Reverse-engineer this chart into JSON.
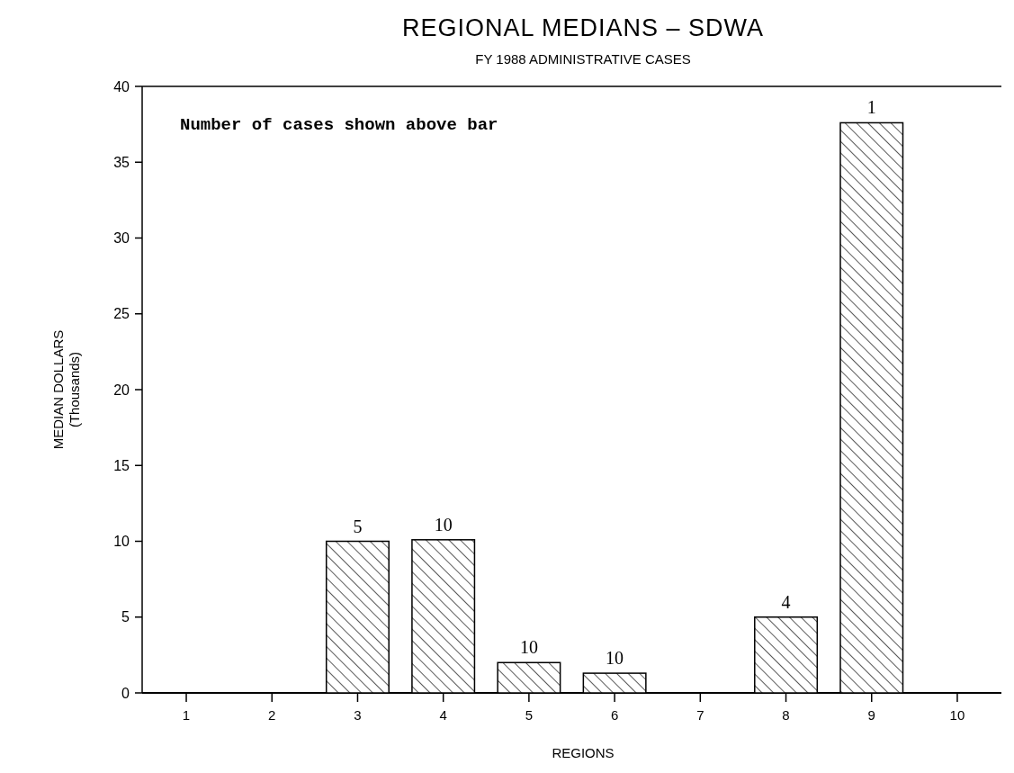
{
  "chart_data": {
    "type": "bar",
    "title": "REGIONAL MEDIANS – SDWA",
    "subtitle": "FY 1988 ADMINISTRATIVE CASES",
    "xlabel": "REGIONS",
    "ylabel": "MEDIAN DOLLARS\n(Thousands)",
    "categories": [
      "1",
      "2",
      "3",
      "4",
      "5",
      "6",
      "7",
      "8",
      "9",
      "10"
    ],
    "values": [
      0,
      0,
      10,
      10.1,
      2,
      1.3,
      0,
      5,
      37.6,
      0
    ],
    "color": "#000000",
    "ylim": [
      0,
      40
    ],
    "yticks": [
      0,
      5,
      10,
      15,
      20,
      25,
      30,
      35,
      40
    ],
    "grid": false,
    "annotations": [
      "Number of cases shown above bar",
      {
        "text": "5",
        "x": "3",
        "y": 10
      },
      {
        "text": "10",
        "x": "4",
        "y": 10.1
      },
      {
        "text": "10",
        "x": "5",
        "y": 2
      },
      {
        "text": "10",
        "x": "6",
        "y": 1.3
      },
      {
        "text": "4",
        "x": "8",
        "y": 5
      },
      {
        "text": "1",
        "x": "9",
        "y": 37.6
      }
    ]
  }
}
